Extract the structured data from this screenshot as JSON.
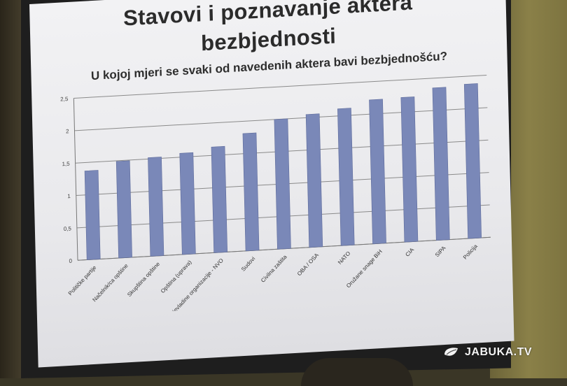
{
  "slide": {
    "title_line1": "Stavovi i poznavanje aktera",
    "title_line2": "bezbjednosti",
    "subtitle": "U kojoj mjeri se svaki od navedenih aktera bavi bezbjednošću?"
  },
  "watermark": {
    "brand": "JABUKA.TV",
    "icon": "apple-leaf-icon"
  },
  "colors": {
    "bar": "#7a88b8",
    "bar_edge": "#5f6c9c",
    "grid": "#8a8a8a"
  },
  "chart_data": {
    "type": "bar",
    "title": "U kojoj mjeri se svaki od navedenih aktera bavi bezbjednošću?",
    "xlabel": "",
    "ylabel": "",
    "ylim": [
      0,
      2.5
    ],
    "yticks": [
      "0",
      "0,5",
      "1",
      "1,5",
      "2",
      "2,5"
    ],
    "ytick_values": [
      0,
      0.5,
      1,
      1.5,
      2,
      2.5
    ],
    "grid": true,
    "legend": "none",
    "categories": [
      "Političke partije",
      "Načelnik/ca opštine",
      "Skupština opštine",
      "Opština (uprava)",
      "Nevladine organizacije - NVO",
      "Sudovi",
      "Civilna zaštita",
      "OBA / OSA",
      "NATO",
      "Oružane snage BiH",
      "CIA",
      "SIPA",
      "Policija"
    ],
    "values": [
      1.37,
      1.49,
      1.52,
      1.56,
      1.63,
      1.81,
      2.0,
      2.05,
      2.11,
      2.22,
      2.23,
      2.35,
      2.38
    ]
  }
}
